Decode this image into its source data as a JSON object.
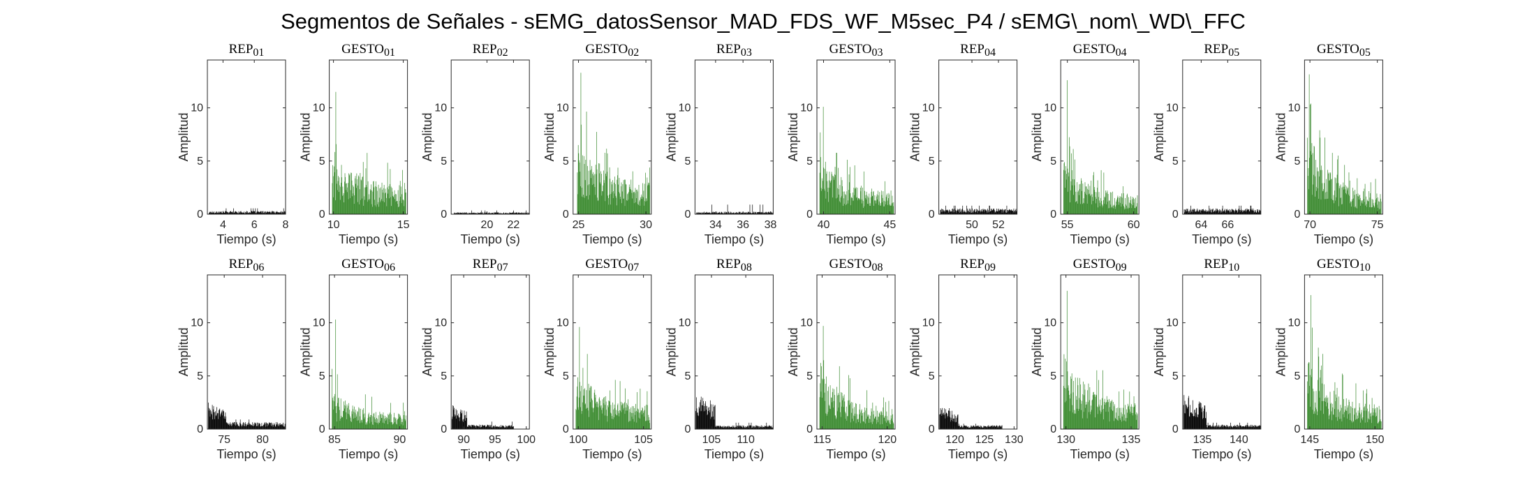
{
  "figure": {
    "title": "Segmentos de Señales - sEMG_datosSensor_MAD_FDS_WF_M5sec_P4 / sEMG\\_nom\\_WD\\_FFC"
  },
  "colors": {
    "rep": "#000000",
    "gesto": "#3a8a2e"
  },
  "chart_data": [
    {
      "type": "bar",
      "title": "REP_01",
      "xlabel": "Tiempo (s)",
      "ylabel": "Amplitud",
      "xlim": [
        3,
        8
      ],
      "ylim": [
        0,
        14.5
      ],
      "xticks": [
        4,
        6,
        8
      ],
      "yticks": [
        0,
        5,
        10
      ],
      "signal": {
        "start": 3.1,
        "end": 8,
        "kind": "rest",
        "base": 0.25,
        "peak": 0.55
      }
    },
    {
      "type": "bar",
      "title": "GESTO_01",
      "xlabel": "Tiempo (s)",
      "ylabel": "Amplitud",
      "xlim": [
        9.7,
        15.3
      ],
      "ylim": [
        0,
        14.5
      ],
      "xticks": [
        10,
        15
      ],
      "yticks": [
        0,
        5,
        10
      ],
      "signal": {
        "start": 9.9,
        "end": 15.2,
        "kind": "gesture",
        "base": 5.5,
        "peak": 11.5,
        "tail": 2.2
      }
    },
    {
      "type": "bar",
      "title": "REP_02",
      "xlabel": "Tiempo (s)",
      "ylabel": "Amplitud",
      "xlim": [
        17.3,
        23.2
      ],
      "ylim": [
        0,
        14.5
      ],
      "xticks": [
        20,
        22
      ],
      "yticks": [
        0,
        5,
        10
      ],
      "signal": {
        "start": 17.5,
        "end": 23.2,
        "kind": "rest",
        "base": 0.15,
        "peak": 0.35
      }
    },
    {
      "type": "bar",
      "title": "GESTO_02",
      "xlabel": "Tiempo (s)",
      "ylabel": "Amplitud",
      "xlim": [
        24.6,
        30.4
      ],
      "ylim": [
        0,
        14.5
      ],
      "xticks": [
        25,
        30
      ],
      "yticks": [
        0,
        5,
        10
      ],
      "signal": {
        "start": 24.9,
        "end": 30.3,
        "kind": "gesture",
        "base": 6.0,
        "peak": 13.3,
        "tail": 2.6
      }
    },
    {
      "type": "bar",
      "title": "REP_03",
      "xlabel": "Tiempo (s)",
      "ylabel": "Amplitud",
      "xlim": [
        32.5,
        38.2
      ],
      "ylim": [
        0,
        14.5
      ],
      "xticks": [
        34,
        36,
        38
      ],
      "yticks": [
        0,
        5,
        10
      ],
      "signal": {
        "start": 32.6,
        "end": 38.2,
        "kind": "rest",
        "base": 0.2,
        "peak": 0.9
      }
    },
    {
      "type": "bar",
      "title": "GESTO_03",
      "xlabel": "Tiempo (s)",
      "ylabel": "Amplitud",
      "xlim": [
        39.5,
        45.4
      ],
      "ylim": [
        0,
        14.5
      ],
      "xticks": [
        40,
        45
      ],
      "yticks": [
        0,
        5,
        10
      ],
      "signal": {
        "start": 39.7,
        "end": 45.3,
        "kind": "gesture",
        "base": 5.0,
        "peak": 10.1,
        "tail": 1.8
      }
    },
    {
      "type": "bar",
      "title": "REP_04",
      "xlabel": "Tiempo (s)",
      "ylabel": "Amplitud",
      "xlim": [
        47.5,
        53.4
      ],
      "ylim": [
        0,
        14.5
      ],
      "xticks": [
        50,
        52
      ],
      "yticks": [
        0,
        5,
        10
      ],
      "signal": {
        "start": 47.6,
        "end": 53.4,
        "kind": "rest",
        "base": 0.45,
        "peak": 0.8
      }
    },
    {
      "type": "bar",
      "title": "GESTO_04",
      "xlabel": "Tiempo (s)",
      "ylabel": "Amplitud",
      "xlim": [
        54.5,
        60.4
      ],
      "ylim": [
        0,
        14.5
      ],
      "xticks": [
        55,
        60
      ],
      "yticks": [
        0,
        5,
        10
      ],
      "signal": {
        "start": 54.7,
        "end": 60.3,
        "kind": "gesture",
        "base": 4.6,
        "peak": 12.6,
        "tail": 1.5
      }
    },
    {
      "type": "bar",
      "title": "REP_05",
      "xlabel": "Tiempo (s)",
      "ylabel": "Amplitud",
      "xlim": [
        62.6,
        68.5
      ],
      "ylim": [
        0,
        14.5
      ],
      "xticks": [
        64,
        66
      ],
      "yticks": [
        0,
        5,
        10
      ],
      "signal": {
        "start": 62.7,
        "end": 68.5,
        "kind": "rest",
        "base": 0.45,
        "peak": 0.8
      }
    },
    {
      "type": "bar",
      "title": "GESTO_05",
      "xlabel": "Tiempo (s)",
      "ylabel": "Amplitud",
      "xlim": [
        69.6,
        75.4
      ],
      "ylim": [
        0,
        14.5
      ],
      "xticks": [
        70,
        75
      ],
      "yticks": [
        0,
        5,
        10
      ],
      "signal": {
        "start": 69.8,
        "end": 75.3,
        "kind": "gesture",
        "base": 7.0,
        "peak": 10.4,
        "tail": 1.5
      }
    },
    {
      "type": "bar",
      "title": "REP_06",
      "xlabel": "Tiempo (s)",
      "ylabel": "Amplitud",
      "xlim": [
        72.8,
        83
      ],
      "ylim": [
        0,
        14.5
      ],
      "xticks": [
        75,
        80
      ],
      "yticks": [
        0,
        5,
        10
      ],
      "signal": {
        "start": 72.9,
        "end": 83,
        "kind": "rest-burst",
        "base": 0.55,
        "peak": 0.9,
        "burstEnd": 75.2,
        "burst": 2.6
      }
    },
    {
      "type": "bar",
      "title": "GESTO_06",
      "xlabel": "Tiempo (s)",
      "ylabel": "Amplitud",
      "xlim": [
        84.6,
        90.6
      ],
      "ylim": [
        0,
        14.5
      ],
      "xticks": [
        85,
        90
      ],
      "yticks": [
        0,
        5,
        10
      ],
      "signal": {
        "start": 84.8,
        "end": 90.5,
        "kind": "gesture",
        "base": 3.2,
        "peak": 10.3,
        "tail": 1.2
      }
    },
    {
      "type": "bar",
      "title": "REP_07",
      "xlabel": "Tiempo (s)",
      "ylabel": "Amplitud",
      "xlim": [
        88,
        100.5
      ],
      "ylim": [
        0,
        14.5
      ],
      "xticks": [
        90,
        95,
        100
      ],
      "yticks": [
        0,
        5,
        10
      ],
      "signal": {
        "start": 88.1,
        "end": 98,
        "kind": "rest-burst",
        "base": 0.35,
        "peak": 0.7,
        "burstEnd": 90.5,
        "burst": 2.4
      }
    },
    {
      "type": "bar",
      "title": "GESTO_07",
      "xlabel": "Tiempo (s)",
      "ylabel": "Amplitud",
      "xlim": [
        99.6,
        105.6
      ],
      "ylim": [
        0,
        14.5
      ],
      "xticks": [
        100,
        105
      ],
      "yticks": [
        0,
        5,
        10
      ],
      "signal": {
        "start": 99.8,
        "end": 105.5,
        "kind": "gesture",
        "base": 5.0,
        "peak": 9.6,
        "tail": 2.0
      }
    },
    {
      "type": "bar",
      "title": "REP_08",
      "xlabel": "Tiempo (s)",
      "ylabel": "Amplitud",
      "xlim": [
        102.6,
        114
      ],
      "ylim": [
        0,
        14.5
      ],
      "xticks": [
        105,
        110
      ],
      "yticks": [
        0,
        5,
        10
      ],
      "signal": {
        "start": 102.7,
        "end": 114,
        "kind": "rest-burst",
        "base": 0.3,
        "peak": 0.6,
        "burstEnd": 105.5,
        "burst": 3.5
      }
    },
    {
      "type": "bar",
      "title": "GESTO_08",
      "xlabel": "Tiempo (s)",
      "ylabel": "Amplitud",
      "xlim": [
        114.6,
        120.6
      ],
      "ylim": [
        0,
        14.5
      ],
      "xticks": [
        115,
        120
      ],
      "yticks": [
        0,
        5,
        10
      ],
      "signal": {
        "start": 114.8,
        "end": 120.5,
        "kind": "gesture",
        "base": 6.0,
        "peak": 9.7,
        "tail": 1.2
      }
    },
    {
      "type": "bar",
      "title": "REP_09",
      "xlabel": "Tiempo (s)",
      "ylabel": "Amplitud",
      "xlim": [
        117.3,
        130.5
      ],
      "ylim": [
        0,
        14.5
      ],
      "xticks": [
        120,
        125,
        130
      ],
      "yticks": [
        0,
        5,
        10
      ],
      "signal": {
        "start": 117.4,
        "end": 128,
        "kind": "rest-burst",
        "base": 0.3,
        "peak": 0.5,
        "burstEnd": 120.5,
        "burst": 2.4
      }
    },
    {
      "type": "bar",
      "title": "GESTO_09",
      "xlabel": "Tiempo (s)",
      "ylabel": "Amplitud",
      "xlim": [
        129.6,
        135.6
      ],
      "ylim": [
        0,
        14.5
      ],
      "xticks": [
        130,
        135
      ],
      "yticks": [
        0,
        5,
        10
      ],
      "signal": {
        "start": 129.8,
        "end": 135.5,
        "kind": "gesture",
        "base": 6.5,
        "peak": 13.0,
        "tail": 2.0
      }
    },
    {
      "type": "bar",
      "title": "REP_10",
      "xlabel": "Tiempo (s)",
      "ylabel": "Amplitud",
      "xlim": [
        132.3,
        143
      ],
      "ylim": [
        0,
        14.5
      ],
      "xticks": [
        135,
        140
      ],
      "yticks": [
        0,
        5,
        10
      ],
      "signal": {
        "start": 132.4,
        "end": 143,
        "kind": "rest-burst",
        "base": 0.35,
        "peak": 0.6,
        "burstEnd": 135.5,
        "burst": 3.4
      }
    },
    {
      "type": "bar",
      "title": "GESTO_10",
      "xlabel": "Tiempo (s)",
      "ylabel": "Amplitud",
      "xlim": [
        144.6,
        150.6
      ],
      "ylim": [
        0,
        14.5
      ],
      "xticks": [
        145,
        150
      ],
      "yticks": [
        0,
        5,
        10
      ],
      "signal": {
        "start": 144.8,
        "end": 150.5,
        "kind": "gesture",
        "base": 6.0,
        "peak": 12.6,
        "tail": 1.8
      }
    }
  ]
}
